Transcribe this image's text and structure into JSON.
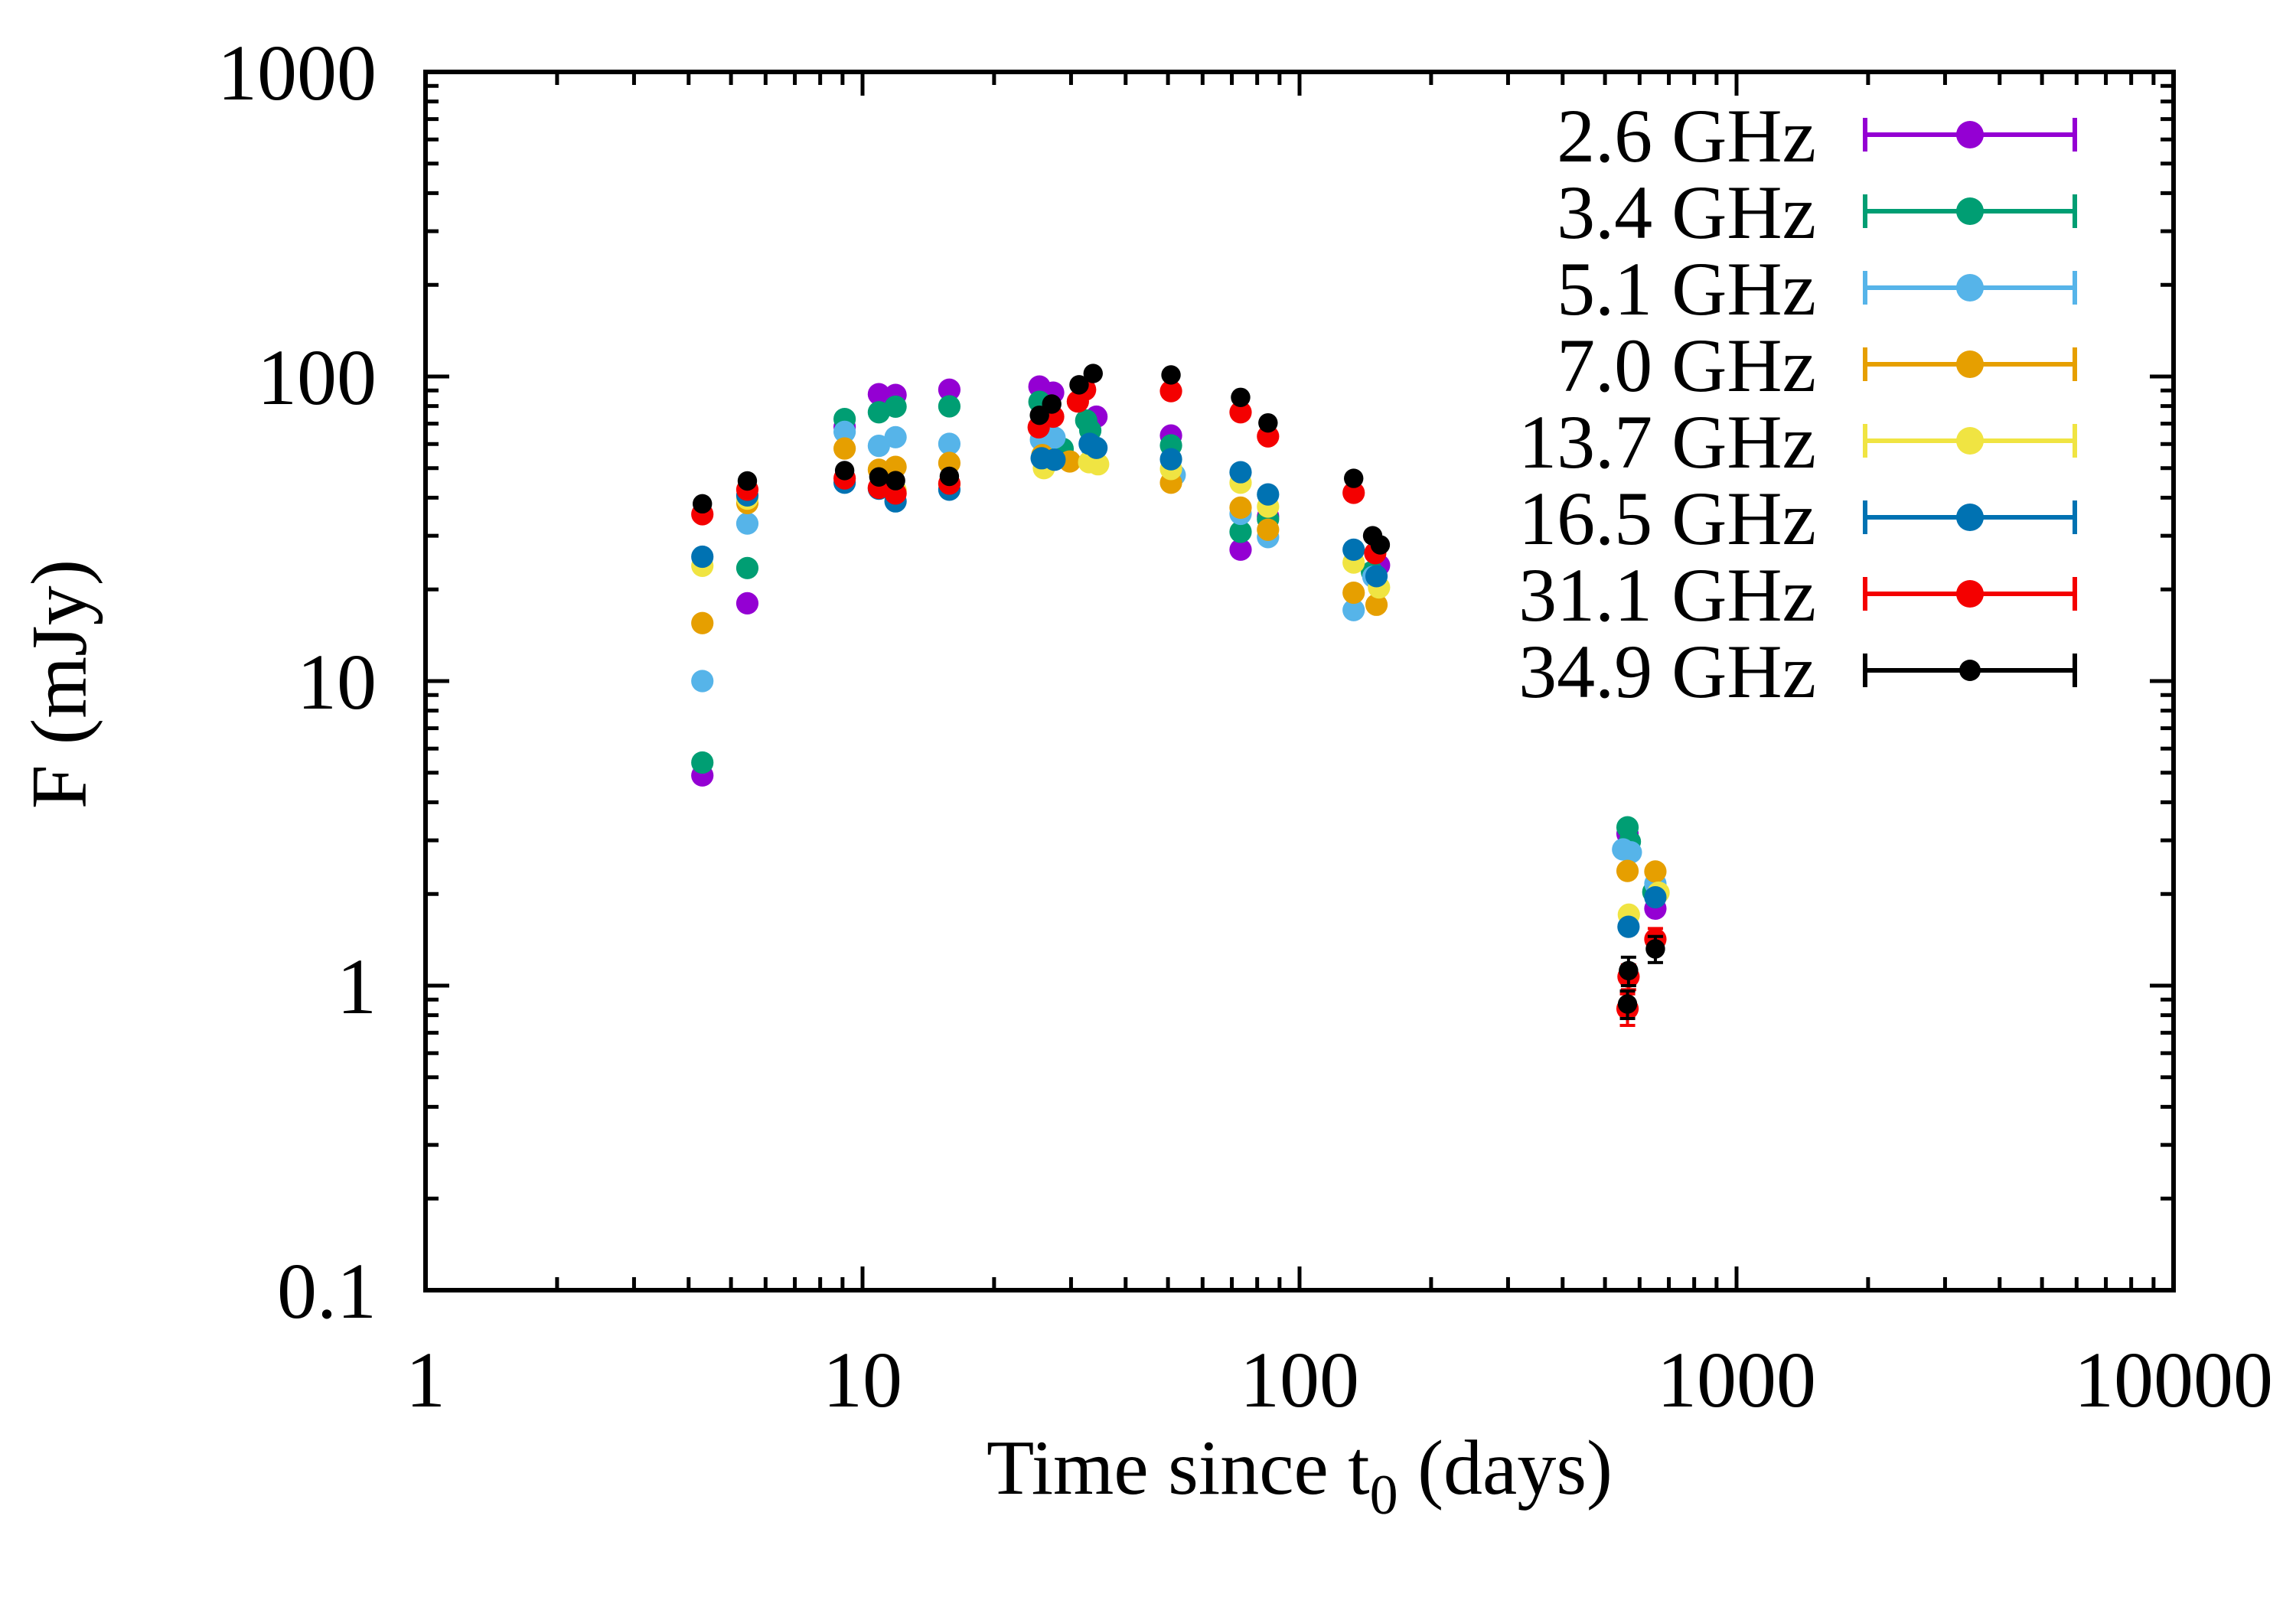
{
  "chart_data": {
    "type": "scatter",
    "xlabel_main": "Time since t",
    "xlabel_sub": "0",
    "xlabel_suffix": " (days)",
    "ylabel": "F (mJy)",
    "xscale": "log",
    "yscale": "log",
    "xlim": [
      1,
      10000
    ],
    "ylim": [
      0.1,
      1000
    ],
    "xticks": {
      "values": [
        1,
        10,
        100,
        1000,
        10000
      ],
      "labels": [
        "1",
        "10",
        "100",
        "1000",
        "10000"
      ]
    },
    "yticks": {
      "values": [
        0.1,
        1,
        10,
        100,
        1000
      ],
      "labels": [
        "0.1",
        "1",
        "10",
        "100",
        "1000"
      ]
    },
    "grid": false,
    "legend_position": "top-right",
    "marker": "filled-circle",
    "series": [
      {
        "name": "2.6 GHz",
        "color": "#9400D3",
        "marker_radius": 14.6,
        "points": [
          [
            4.3,
            4.9
          ],
          [
            5.45,
            18.0
          ],
          [
            9.1,
            68.3
          ],
          [
            10.9,
            87.5
          ],
          [
            11.9,
            87.0
          ],
          [
            15.8,
            90.5
          ],
          [
            25.4,
            92.7
          ],
          [
            27.3,
            88.5
          ],
          [
            34.3,
            73.8
          ],
          [
            50.8,
            64.0
          ],
          [
            73.3,
            27.0
          ],
          [
            84.7,
            34.7
          ],
          [
            152,
            24.0
          ],
          [
            563,
            3.15
          ],
          [
            652,
            1.79
          ]
        ]
      },
      {
        "name": "3.4 GHz",
        "color": "#009E73",
        "marker_radius": 14.6,
        "points": [
          [
            4.3,
            5.4
          ],
          [
            5.45,
            23.5
          ],
          [
            9.1,
            72.5
          ],
          [
            10.9,
            76.3
          ],
          [
            11.9,
            79.6
          ],
          [
            15.8,
            79.8
          ],
          [
            25.4,
            82.6
          ],
          [
            28.7,
            57.9
          ],
          [
            32.5,
            71.7
          ],
          [
            33.2,
            66.5
          ],
          [
            50.8,
            59.4
          ],
          [
            73.3,
            30.9
          ],
          [
            84.7,
            34.0
          ],
          [
            146.5,
            22.8
          ],
          [
            563,
            3.31
          ],
          [
            570,
            2.97
          ],
          [
            645,
            2.03
          ]
        ]
      },
      {
        "name": "5.1 GHz",
        "color": "#56B4E9",
        "marker_radius": 14.6,
        "points": [
          [
            4.3,
            10.0
          ],
          [
            5.45,
            32.9
          ],
          [
            9.1,
            65.8
          ],
          [
            10.9,
            59.2
          ],
          [
            11.9,
            63.2
          ],
          [
            15.8,
            60.1
          ],
          [
            25.6,
            62.0
          ],
          [
            27.5,
            63.0
          ],
          [
            33.5,
            58.3
          ],
          [
            51.8,
            47.5
          ],
          [
            73.3,
            35.4
          ],
          [
            84.7,
            29.7
          ],
          [
            133,
            17.1
          ],
          [
            147.5,
            22.0
          ],
          [
            550,
            2.8
          ],
          [
            573,
            2.74
          ],
          [
            652,
            2.16
          ]
        ]
      },
      {
        "name": "7.0 GHz",
        "color": "#E69F00",
        "marker_radius": 14.6,
        "points": [
          [
            4.3,
            15.5
          ],
          [
            5.45,
            38.4
          ],
          [
            9.1,
            58.0
          ],
          [
            10.9,
            49.4
          ],
          [
            11.9,
            50.5
          ],
          [
            15.8,
            52.0
          ],
          [
            25.8,
            55.2
          ],
          [
            29.8,
            52.6
          ],
          [
            33.3,
            52.5
          ],
          [
            50.8,
            44.8
          ],
          [
            73.3,
            37.1
          ],
          [
            84.7,
            31.4
          ],
          [
            133,
            19.5
          ],
          [
            150,
            17.8
          ],
          [
            563,
            2.38
          ],
          [
            652,
            2.37
          ]
        ]
      },
      {
        "name": "13.7 GHz",
        "color": "#F0E442",
        "marker_radius": 14.6,
        "points": [
          [
            4.3,
            23.9
          ],
          [
            5.45,
            39.7
          ],
          [
            11.9,
            42.3
          ],
          [
            15.8,
            44.4
          ],
          [
            26.0,
            50.0
          ],
          [
            33.0,
            52.3
          ],
          [
            34.6,
            51.5
          ],
          [
            50.8,
            49.7
          ],
          [
            73.3,
            44.8
          ],
          [
            84.7,
            37.4
          ],
          [
            133,
            24.5
          ],
          [
            152,
            20.3
          ],
          [
            567,
            1.71
          ],
          [
            663,
            2.02
          ]
        ]
      },
      {
        "name": "16.5 GHz",
        "color": "#0072B2",
        "marker_radius": 14.6,
        "points": [
          [
            4.3,
            25.6
          ],
          [
            5.45,
            40.7
          ],
          [
            9.1,
            44.8
          ],
          [
            10.9,
            42.8
          ],
          [
            11.9,
            38.9
          ],
          [
            15.8,
            42.5
          ],
          [
            25.7,
            53.9
          ],
          [
            27.5,
            53.3
          ],
          [
            33.1,
            60.1
          ],
          [
            34.3,
            58.3
          ],
          [
            50.8,
            53.5
          ],
          [
            73.3,
            48.5
          ],
          [
            84.7,
            41.0
          ],
          [
            133,
            27.0
          ],
          [
            150,
            22.1
          ],
          [
            566,
            1.56
          ],
          [
            652,
            1.95
          ]
        ]
      },
      {
        "name": "31.1 GHz",
        "color": "#F40000",
        "marker_radius": 14.6,
        "points": [
          [
            4.3,
            35.3
          ],
          [
            5.45,
            42.5
          ],
          [
            9.1,
            46.3
          ],
          [
            10.9,
            43.1
          ],
          [
            11.9,
            41.3
          ],
          [
            15.8,
            44.5
          ],
          [
            25.3,
            68.1
          ],
          [
            27.3,
            73.8
          ],
          [
            31.1,
            82.8
          ],
          [
            32.3,
            90.5
          ],
          [
            50.8,
            89.5
          ],
          [
            73.3,
            76.3
          ],
          [
            84.7,
            63.6
          ],
          [
            133,
            41.5
          ],
          [
            149,
            26.3
          ],
          [
            563,
            0.84,
            0.1
          ],
          [
            566,
            1.07,
            0.1
          ],
          [
            652,
            1.42,
            0.12
          ]
        ]
      },
      {
        "name": "34.9 GHz",
        "color": "#000000",
        "marker_radius": 12.7,
        "points": [
          [
            4.3,
            38.2
          ],
          [
            5.45,
            45.4
          ],
          [
            9.1,
            49.1
          ],
          [
            10.9,
            46.8
          ],
          [
            11.9,
            45.5
          ],
          [
            15.8,
            47.0
          ],
          [
            25.4,
            74.6
          ],
          [
            27.1,
            81.2
          ],
          [
            31.3,
            93.9
          ],
          [
            33.7,
            102.3
          ],
          [
            50.8,
            101.2
          ],
          [
            73.3,
            85.4
          ],
          [
            84.7,
            70.4
          ],
          [
            133,
            46.3
          ],
          [
            147,
            30.0
          ],
          [
            153,
            28.0
          ],
          [
            563,
            0.87,
            0.09
          ],
          [
            566,
            1.12,
            0.12
          ],
          [
            652,
            1.32,
            0.13
          ]
        ]
      }
    ]
  }
}
